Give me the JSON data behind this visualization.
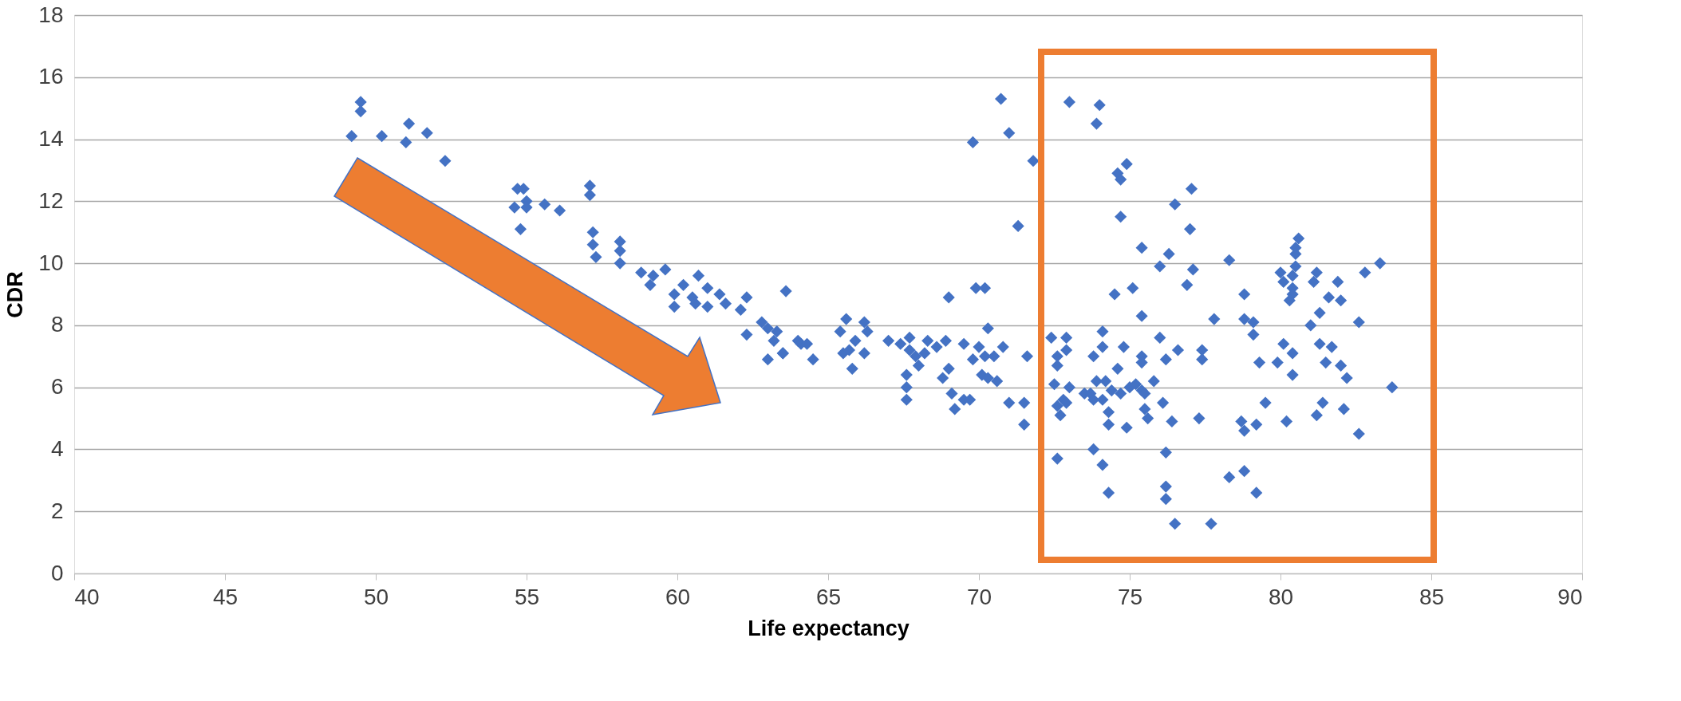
{
  "chart_data": {
    "type": "scatter",
    "xlabel": "Life expectancy",
    "ylabel": "CDR",
    "xlim": [
      40,
      90
    ],
    "ylim": [
      0,
      18
    ],
    "xticks": [
      40,
      45,
      50,
      55,
      60,
      65,
      70,
      75,
      80,
      85,
      90
    ],
    "yticks": [
      0,
      2,
      4,
      6,
      8,
      10,
      12,
      14,
      16,
      18
    ],
    "grid": "y",
    "legend": false,
    "marker": "diamond",
    "series": [
      {
        "color": "#4472c4",
        "x": [
          49.5,
          49.5,
          49.2,
          50.2,
          51.1,
          51.0,
          51.7,
          52.3,
          54.7,
          54.9,
          54.6,
          55.0,
          55.0,
          54.8,
          55.6,
          56.1,
          57.1,
          57.1,
          57.2,
          57.2,
          57.3,
          58.1,
          58.1,
          58.1,
          58.8,
          59.2,
          59.1,
          59.6,
          59.9,
          59.9,
          60.2,
          60.7,
          60.5,
          60.6,
          61.0,
          61.0,
          61.4,
          61.6,
          62.3,
          62.1,
          62.8,
          63.0,
          62.3,
          63.2,
          63.0,
          63.5,
          63.3,
          63.5,
          64.0,
          64.1,
          64.3,
          64.5,
          65.4,
          65.6,
          65.9,
          65.5,
          65.7,
          66.2,
          66.3,
          65.8,
          66.2,
          67.0,
          67.4,
          67.7,
          67.7,
          67.9,
          68.0,
          68.2,
          68.3,
          68.6,
          68.9,
          67.6,
          67.6,
          67.6,
          68.8,
          69.0,
          69.1,
          69.2,
          69.5,
          69.7,
          69.5,
          69.8,
          70.0,
          70.2,
          70.3,
          70.8,
          70.1,
          70.3,
          70.6,
          70.5,
          71.0,
          71.5,
          71.5,
          71.6,
          63.6,
          69.0,
          69.9,
          70.2,
          70.73,
          71.0,
          69.8,
          71.8,
          71.3,
          73.0,
          74.0,
          73.9,
          74.9,
          74.6,
          74.7,
          74.7,
          74.5,
          75.1,
          72.4,
          72.9,
          72.9,
          72.6,
          72.6,
          72.5,
          73.0,
          72.6,
          72.8,
          72.9,
          72.7,
          72.6,
          74.1,
          74.1,
          73.8,
          74.8,
          74.6,
          73.5,
          73.7,
          73.9,
          74.2,
          74.4,
          74.7,
          75.0,
          73.8,
          74.1,
          74.3,
          74.3,
          74.9,
          75.4,
          73.8,
          74.1,
          74.3,
          75.4,
          77.05,
          76.5,
          77.0,
          76.3,
          76.0,
          77.1,
          76.9,
          78.3,
          78.8,
          80.6,
          80.5,
          80.5,
          80.5,
          80.0,
          80.1,
          80.4,
          80.4,
          80.4,
          80.3,
          81.2,
          81.1,
          81.9,
          81.6,
          82.0,
          82.8,
          83.3,
          81.3,
          81.0,
          82.6,
          77.8,
          78.8,
          79.1,
          79.1,
          76.0,
          75.4,
          80.1,
          81.3,
          81.7,
          80.4,
          76.6,
          77.4,
          77.4,
          76.2,
          75.4,
          75.4,
          79.3,
          79.9,
          81.5,
          82.0,
          80.4,
          82.2,
          75.8,
          83.7,
          75.2,
          75.5,
          76.1,
          79.5,
          81.4,
          75.5,
          81.2,
          82.1,
          75.6,
          76.4,
          77.3,
          78.7,
          78.8,
          79.2,
          80.2,
          82.6,
          76.2,
          76.2,
          76.2,
          76.5,
          77.7,
          78.3,
          78.8,
          79.2
        ],
        "values": [
          15.2,
          14.9,
          14.1,
          14.1,
          14.5,
          13.9,
          14.2,
          13.3,
          12.4,
          12.4,
          11.8,
          12.0,
          11.8,
          11.1,
          11.9,
          11.7,
          12.5,
          12.2,
          11.0,
          10.6,
          10.2,
          10.7,
          10.4,
          10.0,
          9.7,
          9.6,
          9.3,
          9.8,
          9.0,
          8.6,
          9.3,
          9.6,
          8.9,
          8.7,
          8.6,
          9.2,
          9.0,
          8.7,
          8.9,
          8.5,
          8.1,
          7.9,
          7.7,
          7.5,
          6.9,
          7.1,
          7.8,
          7.1,
          7.5,
          7.4,
          7.4,
          6.9,
          7.8,
          8.2,
          7.5,
          7.1,
          7.2,
          8.1,
          7.8,
          6.6,
          7.1,
          7.5,
          7.4,
          7.6,
          7.2,
          7.0,
          6.7,
          7.1,
          7.5,
          7.3,
          7.5,
          6.4,
          6.0,
          5.6,
          6.3,
          6.6,
          5.8,
          5.3,
          5.6,
          5.6,
          7.4,
          6.9,
          7.3,
          7.0,
          7.9,
          7.3,
          6.4,
          6.3,
          6.2,
          7.0,
          5.5,
          5.5,
          4.8,
          7.0,
          9.1,
          8.9,
          9.2,
          9.2,
          15.3,
          14.2,
          13.9,
          13.3,
          11.2,
          15.2,
          15.1,
          14.5,
          13.2,
          12.9,
          12.7,
          11.5,
          9.0,
          9.2,
          7.6,
          7.6,
          7.2,
          7.0,
          6.7,
          6.1,
          6.0,
          5.4,
          5.6,
          5.5,
          5.1,
          3.7,
          7.8,
          7.3,
          7.0,
          7.3,
          6.6,
          5.8,
          5.8,
          6.2,
          6.2,
          5.9,
          5.8,
          6.0,
          5.6,
          5.6,
          5.2,
          4.8,
          4.7,
          5.9,
          4.0,
          3.5,
          2.6,
          10.5,
          12.4,
          11.9,
          11.1,
          10.3,
          9.9,
          9.8,
          9.3,
          10.1,
          9.0,
          10.8,
          10.5,
          10.3,
          9.9,
          9.7,
          9.4,
          9.6,
          9.2,
          9.0,
          8.8,
          9.7,
          9.4,
          9.4,
          8.9,
          8.8,
          9.7,
          10.0,
          8.4,
          8.0,
          8.1,
          8.2,
          8.2,
          8.1,
          7.7,
          7.6,
          8.3,
          7.4,
          7.4,
          7.3,
          7.1,
          7.2,
          7.2,
          6.9,
          6.9,
          7.0,
          6.8,
          6.8,
          6.8,
          6.8,
          6.7,
          6.4,
          6.3,
          6.2,
          6.0,
          6.1,
          5.8,
          5.5,
          5.5,
          5.5,
          5.3,
          5.1,
          5.3,
          5.0,
          4.9,
          5.0,
          4.9,
          4.6,
          4.8,
          4.9,
          4.5,
          3.9,
          2.8,
          2.4,
          1.6,
          1.6,
          3.1,
          3.3,
          2.6
        ]
      }
    ]
  }
}
